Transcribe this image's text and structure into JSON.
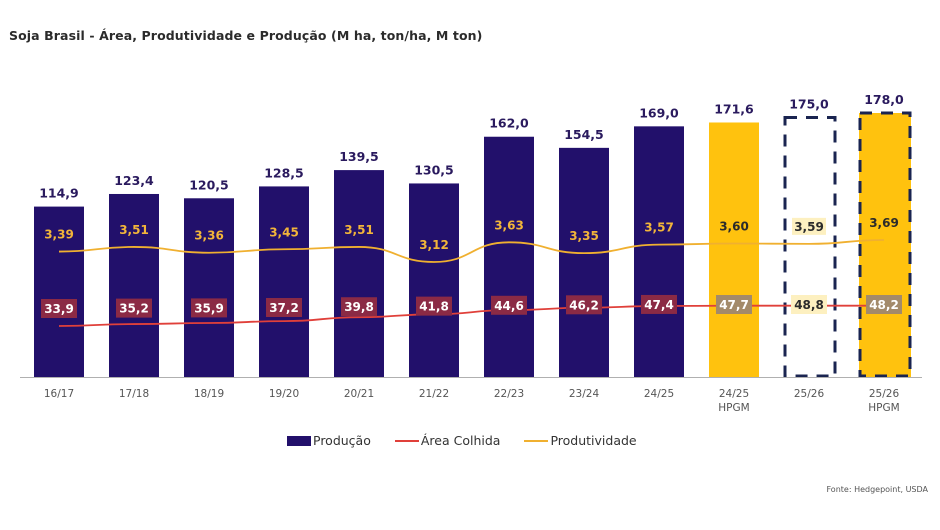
{
  "title": "Soja Brasil - Área, Produtividade e Produção (M ha, ton/ha, M ton)",
  "source": "Fonte: Hedgepoint, USDA",
  "colors": {
    "production_bar": "#22106b",
    "hpgm_bar": "#ffc20e",
    "area_line": "#e0403a",
    "area_label_bg": "#8b2a45",
    "area_label_bg_hpgm": "#a38a6a",
    "area_label_bg_dashed": "#fdf0c0",
    "productivity_line": "#f0b030",
    "productivity_label": "#f2b53a",
    "productivity_label_hpgm": "#2b2b2b",
    "productivity_label_bg_dashed": "#fdf0c0",
    "bar_value_label": "#2a1a5e",
    "dashed_border": "#1a2450",
    "axis": "#b0b0b0",
    "tick_label": "#555555"
  },
  "legend": {
    "items": [
      {
        "label": "Produção",
        "type": "bar"
      },
      {
        "label": "Área Colhida",
        "type": "line"
      },
      {
        "label": "Produtividade",
        "type": "line"
      }
    ]
  },
  "chart_data": {
    "type": "bar",
    "title": "Soja Brasil - Área, Produtividade e Produção (M ha, ton/ha, M ton)",
    "xlabel": "",
    "ylabel": "",
    "legend_position": "bottom",
    "grid": false,
    "categories": [
      "16/17",
      "17/18",
      "18/19",
      "19/20",
      "20/21",
      "21/22",
      "22/23",
      "23/24",
      "24/25",
      "24/25\nHPGM",
      "25/26",
      "25/26\nHPGM"
    ],
    "category_lines": [
      [
        "16/17"
      ],
      [
        "17/18"
      ],
      [
        "18/19"
      ],
      [
        "19/20"
      ],
      [
        "20/21"
      ],
      [
        "21/22"
      ],
      [
        "22/23"
      ],
      [
        "23/24"
      ],
      [
        "24/25"
      ],
      [
        "24/25",
        "HPGM"
      ],
      [
        "25/26"
      ],
      [
        "25/26",
        "HPGM"
      ]
    ],
    "bar_styles": [
      "solid",
      "solid",
      "solid",
      "solid",
      "solid",
      "solid",
      "solid",
      "solid",
      "solid",
      "hpgm",
      "dashed",
      "hpgm-dashed"
    ],
    "series": [
      {
        "name": "Produção",
        "type": "bar",
        "unit": "M ton",
        "values": [
          114.9,
          123.4,
          120.5,
          128.5,
          139.5,
          130.5,
          162.0,
          154.5,
          169.0,
          171.6,
          175.0,
          178.0
        ],
        "labels": [
          "114,9",
          "123,4",
          "120,5",
          "128,5",
          "139,5",
          "130,5",
          "162,0",
          "154,5",
          "169,0",
          "171,6",
          "175,0",
          "178,0"
        ]
      },
      {
        "name": "Área Colhida",
        "type": "line",
        "unit": "M ha",
        "values": [
          33.9,
          35.2,
          35.9,
          37.2,
          39.8,
          41.8,
          44.6,
          46.2,
          47.4,
          47.7,
          48.8,
          48.2
        ],
        "labels": [
          "33,9",
          "35,2",
          "35,9",
          "37,2",
          "39,8",
          "41,8",
          "44,6",
          "46,2",
          "47,4",
          "47,7",
          "48,8",
          "48,2"
        ]
      },
      {
        "name": "Produtividade",
        "type": "line",
        "unit": "ton/ha",
        "values": [
          3.39,
          3.51,
          3.36,
          3.45,
          3.51,
          3.12,
          3.63,
          3.35,
          3.57,
          3.6,
          3.59,
          3.69
        ],
        "labels": [
          "3,39",
          "3,51",
          "3,36",
          "3,45",
          "3,51",
          "3,12",
          "3,63",
          "3,35",
          "3,57",
          "3,60",
          "3,59",
          "3,69"
        ]
      }
    ],
    "ylim_production": [
      0,
      178
    ],
    "ylim_area": [
      0,
      80
    ],
    "ylim_productivity": [
      0,
      6
    ]
  }
}
